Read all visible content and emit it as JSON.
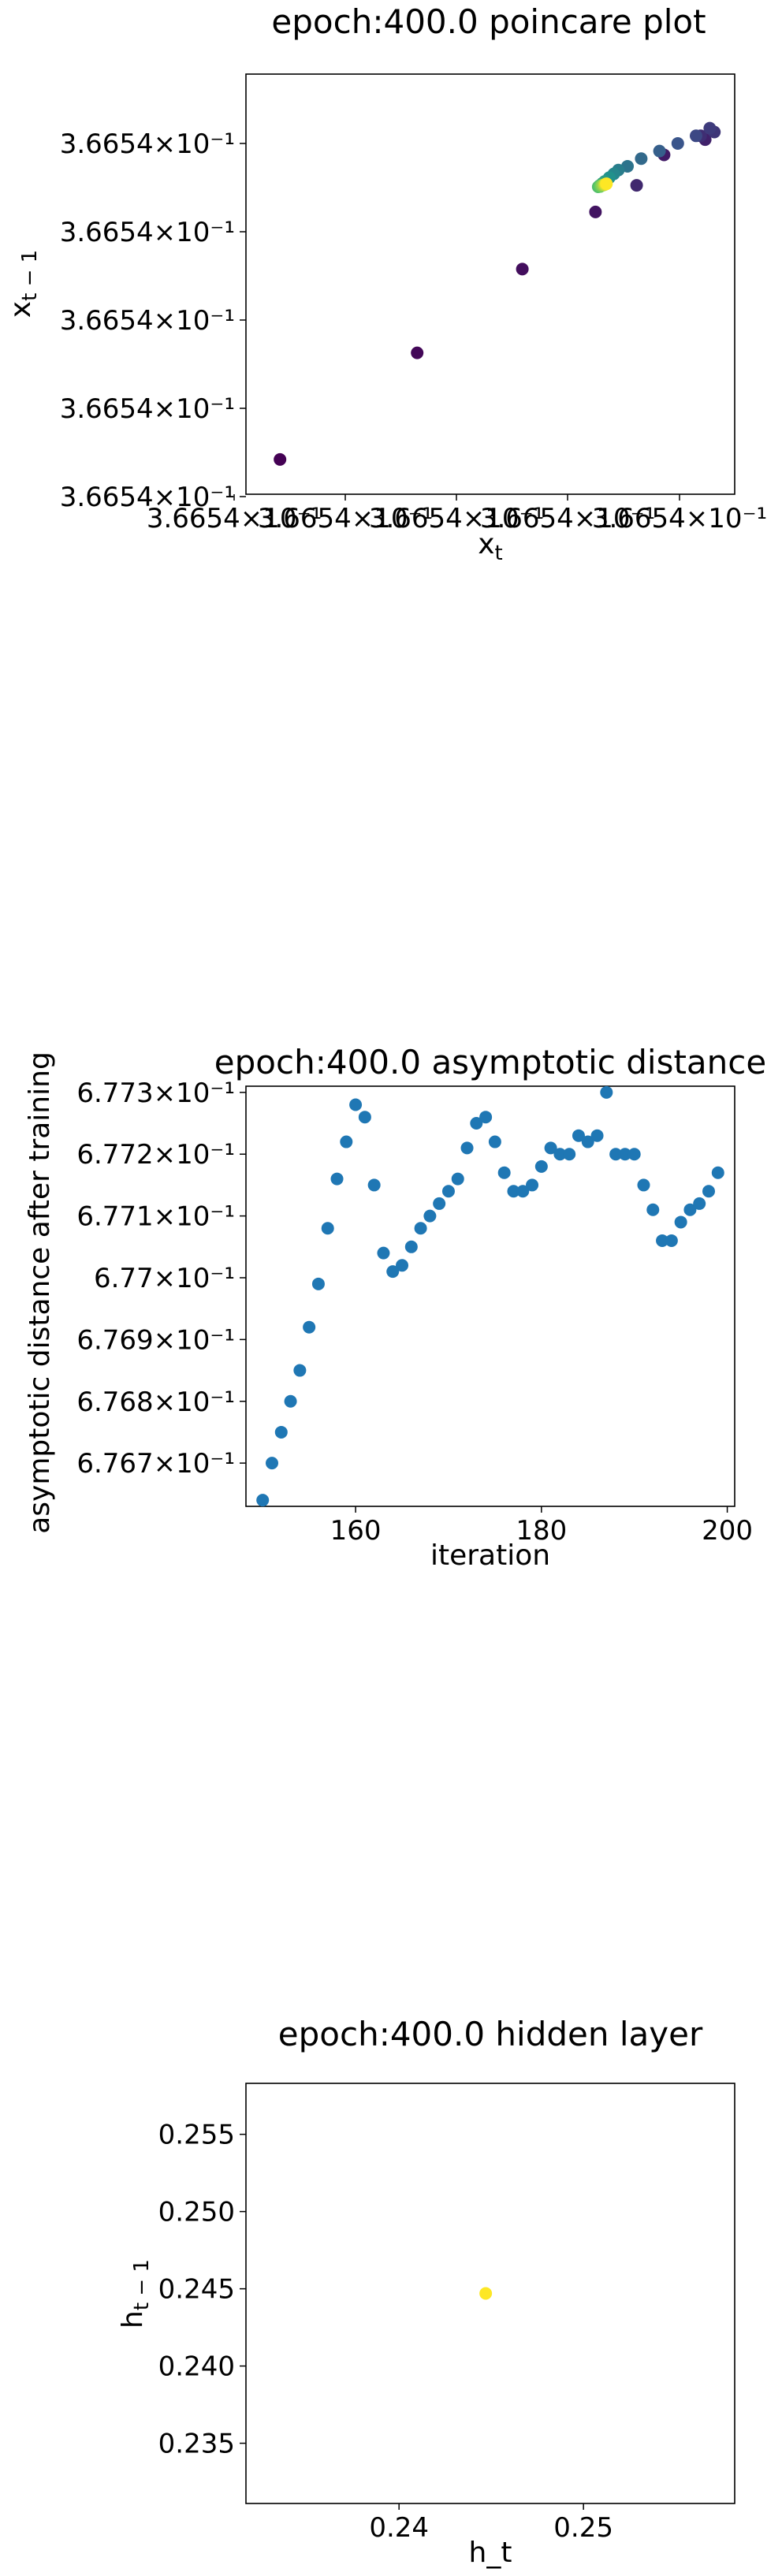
{
  "chart_data": [
    {
      "type": "scatter",
      "title": "epoch:400.0 poincare plot",
      "xlabel": "x_t",
      "ylabel": "x_{t-1}",
      "grid": false,
      "color_map": "viridis",
      "x_tick_labels": [
        "3.6654×10⁻¹",
        "3.6654×10⁻¹",
        "3.6654×10⁻¹",
        "3.6654×10⁻¹",
        "3.6654×10⁻¹"
      ],
      "y_tick_labels": [
        "3.6654×10⁻¹",
        "3.6654×10⁻¹",
        "3.6654×10⁻¹",
        "3.6654×10⁻¹",
        "3.6654×10⁻¹"
      ],
      "xlim": [
        0.0,
        1.0
      ],
      "ylim": [
        0.0,
        1.0
      ],
      "points": [
        {
          "x": 0.04,
          "y": 0.05,
          "t": 0.0
        },
        {
          "x": 0.34,
          "y": 0.33,
          "t": 0.02
        },
        {
          "x": 0.57,
          "y": 0.55,
          "t": 0.04
        },
        {
          "x": 0.73,
          "y": 0.7,
          "t": 0.06
        },
        {
          "x": 0.88,
          "y": 0.85,
          "t": 0.08
        },
        {
          "x": 0.97,
          "y": 0.89,
          "t": 0.1
        },
        {
          "x": 0.82,
          "y": 0.77,
          "t": 0.12
        },
        {
          "x": 0.96,
          "y": 0.9,
          "t": 0.14
        },
        {
          "x": 0.99,
          "y": 0.91,
          "t": 0.16
        },
        {
          "x": 0.98,
          "y": 0.92,
          "t": 0.18
        },
        {
          "x": 0.95,
          "y": 0.9,
          "t": 0.22
        },
        {
          "x": 0.91,
          "y": 0.88,
          "t": 0.26
        },
        {
          "x": 0.87,
          "y": 0.86,
          "t": 0.3
        },
        {
          "x": 0.83,
          "y": 0.84,
          "t": 0.34
        },
        {
          "x": 0.8,
          "y": 0.82,
          "t": 0.38
        },
        {
          "x": 0.78,
          "y": 0.81,
          "t": 0.42
        },
        {
          "x": 0.77,
          "y": 0.8,
          "t": 0.46
        },
        {
          "x": 0.76,
          "y": 0.79,
          "t": 0.5
        },
        {
          "x": 0.75,
          "y": 0.78,
          "t": 0.54
        },
        {
          "x": 0.745,
          "y": 0.775,
          "t": 0.58
        },
        {
          "x": 0.74,
          "y": 0.77,
          "t": 0.62
        },
        {
          "x": 0.738,
          "y": 0.768,
          "t": 0.66
        },
        {
          "x": 0.736,
          "y": 0.766,
          "t": 0.7
        },
        {
          "x": 0.74,
          "y": 0.767,
          "t": 0.74
        },
        {
          "x": 0.742,
          "y": 0.769,
          "t": 0.78
        },
        {
          "x": 0.745,
          "y": 0.77,
          "t": 0.82
        },
        {
          "x": 0.748,
          "y": 0.771,
          "t": 0.86
        },
        {
          "x": 0.75,
          "y": 0.772,
          "t": 0.9
        },
        {
          "x": 0.752,
          "y": 0.773,
          "t": 0.95
        },
        {
          "x": 0.754,
          "y": 0.774,
          "t": 1.0
        }
      ]
    },
    {
      "type": "scatter",
      "title": "epoch:400.0 asymptotic distance",
      "xlabel": "iteration",
      "ylabel": "asymptotic distance after training",
      "grid": false,
      "color": "#1f77b4",
      "xlim": [
        148.2,
        200.8
      ],
      "ylim": [
        0.67663,
        0.67731
      ],
      "x_ticks": [
        160,
        180,
        200
      ],
      "y_ticks": [
        0.6767,
        0.6768,
        0.6769,
        0.677,
        0.6771,
        0.6772,
        0.6773
      ],
      "y_tick_labels": [
        "6.767×10⁻¹",
        "6.768×10⁻¹",
        "6.769×10⁻¹",
        "6.77×10⁻¹",
        "6.771×10⁻¹",
        "6.772×10⁻¹",
        "6.773×10⁻¹"
      ],
      "x": [
        150,
        151,
        152,
        153,
        154,
        155,
        156,
        157,
        158,
        159,
        160,
        161,
        162,
        163,
        164,
        165,
        166,
        167,
        168,
        169,
        170,
        171,
        172,
        173,
        174,
        175,
        176,
        177,
        178,
        179,
        180,
        181,
        182,
        183,
        184,
        185,
        186,
        187,
        188,
        189,
        190,
        191,
        192,
        193,
        194,
        195,
        196,
        197,
        198,
        199
      ],
      "y": [
        0.67664,
        0.6767,
        0.67675,
        0.6768,
        0.67685,
        0.67692,
        0.67699,
        0.67708,
        0.67716,
        0.67722,
        0.67728,
        0.67726,
        0.67715,
        0.67704,
        0.67701,
        0.67702,
        0.67705,
        0.67708,
        0.6771,
        0.67712,
        0.67714,
        0.67716,
        0.67721,
        0.67725,
        0.67726,
        0.67722,
        0.67717,
        0.67714,
        0.67714,
        0.67715,
        0.67718,
        0.67721,
        0.6772,
        0.6772,
        0.67723,
        0.67722,
        0.67723,
        0.6773,
        0.6772,
        0.6772,
        0.6772,
        0.67715,
        0.67711,
        0.67706,
        0.67706,
        0.67709,
        0.67711,
        0.67712,
        0.67714,
        0.67717
      ]
    },
    {
      "type": "scatter",
      "title": "epoch:400.0 hidden layer",
      "xlabel": "h_t",
      "ylabel": "h_{t-1}",
      "grid": false,
      "color": "#fde725",
      "xlim": [
        0.2317,
        0.2582
      ],
      "ylim": [
        0.2311,
        0.2583
      ],
      "x_ticks": [
        0.24,
        0.25
      ],
      "x_tick_labels": [
        "0.24",
        "0.25"
      ],
      "y_ticks": [
        0.235,
        0.24,
        0.245,
        0.25,
        0.255
      ],
      "y_tick_labels": [
        "0.235",
        "0.240",
        "0.245",
        "0.250",
        "0.255"
      ],
      "x": [
        0.2447
      ],
      "y": [
        0.2447
      ]
    }
  ]
}
